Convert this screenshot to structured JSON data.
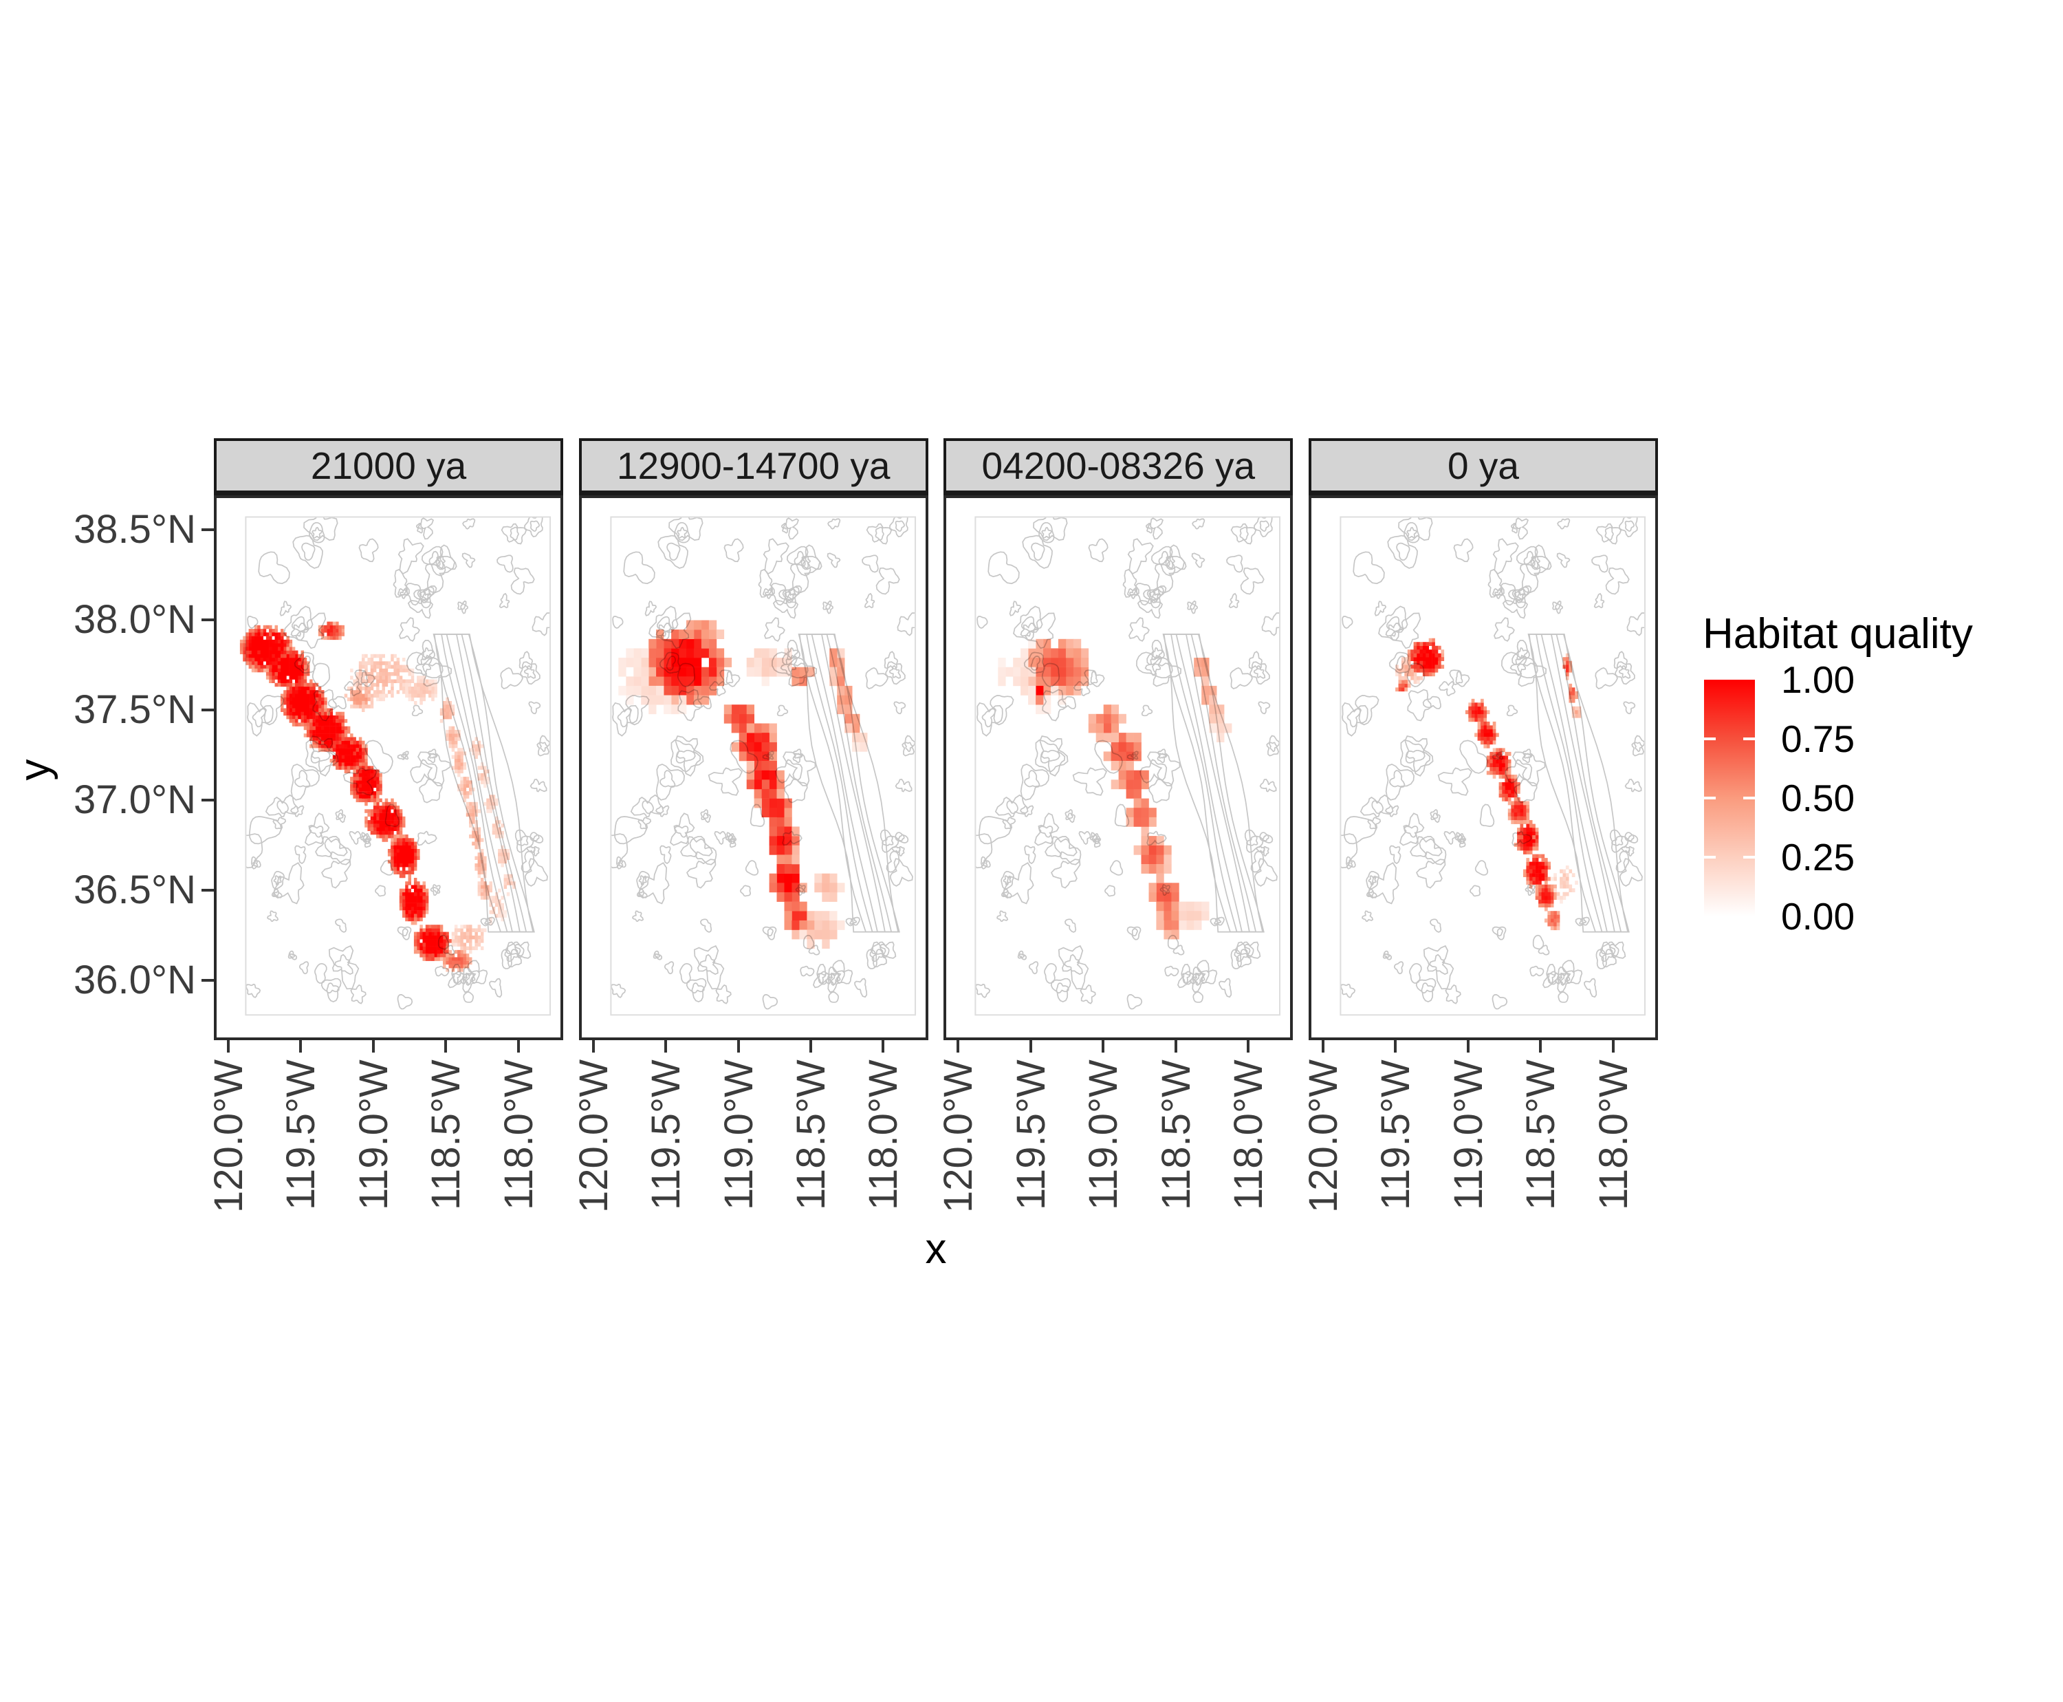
{
  "figure": {
    "background": "#FFFFFF"
  },
  "chart_data": {
    "type": "heatmap",
    "subtype": "faceted-habitat-suitability-maps",
    "facets": [
      "21000 ya",
      "12900-14700 ya",
      "04200-08326 ya",
      "0 ya"
    ],
    "xlabel": "x",
    "ylabel": "y",
    "x_ticks": [
      {
        "label": "120.0°W",
        "lon": 120.0
      },
      {
        "label": "119.5°W",
        "lon": 119.5
      },
      {
        "label": "119.0°W",
        "lon": 119.0
      },
      {
        "label": "118.5°W",
        "lon": 118.5
      },
      {
        "label": "118.0°W",
        "lon": 118.0
      }
    ],
    "y_ticks": [
      {
        "label": "38.5°N",
        "lat": 38.5
      },
      {
        "label": "38.0°N",
        "lat": 38.0
      },
      {
        "label": "37.5°N",
        "lat": 37.5
      },
      {
        "label": "37.0°N",
        "lat": 37.0
      },
      {
        "label": "36.5°N",
        "lat": 36.5
      },
      {
        "label": "36.0°N",
        "lat": 36.0
      }
    ],
    "panel_extent": {
      "west_lon": 120.1,
      "east_lon": 117.69,
      "north_lat": 38.69,
      "south_lat": 35.67
    },
    "map_extent": {
      "west_lon": 119.88,
      "east_lon": 117.78,
      "north_lat": 38.57,
      "south_lat": 35.81
    },
    "legend": {
      "title": "Habitat quality",
      "tick_labels": [
        "1.00",
        "0.75",
        "0.50",
        "0.25",
        "0.00"
      ],
      "tick_values": [
        1.0,
        0.75,
        0.5,
        0.25,
        0.0
      ]
    },
    "colors": {
      "gradient_stops": [
        [
          0,
          "#FFFFFF"
        ],
        [
          0.25,
          "#FDCFBF"
        ],
        [
          0.5,
          "#FA9B7E"
        ],
        [
          0.75,
          "#F6503C"
        ],
        [
          1,
          "#FF0000"
        ]
      ],
      "contour": "#C6C6C6",
      "map_frame": "#DEDEDE",
      "strip_fill": "#D4D4D4",
      "strip_border": "#1A1A1A",
      "panel_border": "#2A2A2A",
      "axis_text": "#3C3C3C",
      "tick_mark": "#333333"
    },
    "panels": [
      {
        "label": "21000 ya",
        "cell_deg": 0.02,
        "patches": [
          [
            119.75,
            37.85,
            0.18,
            0.13,
            1,
            650
          ],
          [
            119.6,
            37.74,
            0.15,
            0.11,
            1,
            520
          ],
          [
            119.49,
            37.55,
            0.16,
            0.13,
            1,
            560
          ],
          [
            119.33,
            37.4,
            0.15,
            0.12,
            1,
            520
          ],
          [
            119.18,
            37.27,
            0.13,
            0.1,
            1,
            430
          ],
          [
            119.06,
            37.1,
            0.11,
            0.11,
            1,
            380
          ],
          [
            118.93,
            36.9,
            0.13,
            0.11,
            1,
            430
          ],
          [
            118.8,
            36.7,
            0.1,
            0.12,
            1,
            380
          ],
          [
            118.73,
            36.45,
            0.1,
            0.12,
            1,
            380
          ],
          [
            118.6,
            36.22,
            0.13,
            0.1,
            0.95,
            420
          ],
          [
            118.44,
            36.12,
            0.1,
            0.06,
            0.6,
            150
          ],
          [
            119.3,
            37.95,
            0.09,
            0.05,
            0.75,
            110
          ],
          [
            118.95,
            37.7,
            0.22,
            0.13,
            0.3,
            300
          ],
          [
            119.1,
            37.58,
            0.1,
            0.07,
            0.42,
            110
          ],
          [
            118.68,
            37.62,
            0.12,
            0.08,
            0.25,
            110
          ],
          [
            118.5,
            37.5,
            0.045,
            0.065,
            0.35,
            60
          ],
          [
            118.46,
            37.36,
            0.045,
            0.065,
            0.35,
            60
          ],
          [
            118.42,
            37.22,
            0.045,
            0.065,
            0.35,
            60
          ],
          [
            118.37,
            37.08,
            0.045,
            0.065,
            0.35,
            60
          ],
          [
            118.33,
            36.94,
            0.045,
            0.065,
            0.35,
            60
          ],
          [
            118.3,
            36.8,
            0.045,
            0.065,
            0.35,
            60
          ],
          [
            118.27,
            36.66,
            0.045,
            0.065,
            0.35,
            60
          ],
          [
            118.24,
            36.52,
            0.045,
            0.065,
            0.35,
            60
          ],
          [
            118.3,
            37.3,
            0.04,
            0.055,
            0.25,
            40
          ],
          [
            118.25,
            37.15,
            0.04,
            0.055,
            0.25,
            40
          ],
          [
            118.2,
            37.0,
            0.04,
            0.055,
            0.25,
            40
          ],
          [
            118.15,
            36.85,
            0.04,
            0.055,
            0.25,
            40
          ],
          [
            118.11,
            36.7,
            0.04,
            0.055,
            0.25,
            40
          ],
          [
            118.08,
            36.55,
            0.04,
            0.055,
            0.25,
            40
          ],
          [
            118.35,
            36.25,
            0.12,
            0.08,
            0.3,
            110
          ],
          [
            118.16,
            36.42,
            0.06,
            0.1,
            0.2,
            50
          ]
        ]
      },
      {
        "label": "12900-14700 ya",
        "cell_deg": 0.052,
        "patches": [
          [
            119.38,
            37.78,
            0.26,
            0.2,
            0.88,
            240
          ],
          [
            119.55,
            37.72,
            0.3,
            0.22,
            0.18,
            120
          ],
          [
            119.25,
            37.97,
            0.1,
            0.04,
            0.45,
            25
          ],
          [
            118.82,
            37.78,
            0.15,
            0.07,
            0.22,
            45
          ],
          [
            118.6,
            37.72,
            0.06,
            0.05,
            0.5,
            16
          ],
          [
            119.02,
            37.48,
            0.1,
            0.08,
            0.7,
            65
          ],
          [
            118.9,
            37.33,
            0.13,
            0.1,
            0.8,
            100
          ],
          [
            118.84,
            37.15,
            0.12,
            0.1,
            0.8,
            95
          ],
          [
            118.78,
            36.98,
            0.1,
            0.09,
            0.75,
            75
          ],
          [
            118.72,
            36.8,
            0.09,
            0.1,
            0.8,
            75
          ],
          [
            118.68,
            36.58,
            0.1,
            0.11,
            0.85,
            95
          ],
          [
            118.62,
            36.38,
            0.08,
            0.08,
            0.7,
            55
          ],
          [
            118.45,
            36.3,
            0.12,
            0.1,
            0.25,
            55
          ],
          [
            118.42,
            36.55,
            0.08,
            0.08,
            0.3,
            38
          ],
          [
            118.36,
            37.82,
            0.045,
            0.06,
            0.45,
            22
          ],
          [
            118.32,
            37.7,
            0.045,
            0.06,
            0.45,
            22
          ],
          [
            118.28,
            37.58,
            0.045,
            0.06,
            0.45,
            22
          ],
          [
            118.24,
            37.47,
            0.045,
            0.06,
            0.45,
            22
          ],
          [
            118.2,
            37.38,
            0.05,
            0.05,
            0.2,
            12
          ]
        ]
      },
      {
        "label": "04200-08326 ya",
        "cell_deg": 0.052,
        "patches": [
          [
            119.33,
            37.77,
            0.2,
            0.17,
            0.62,
            140
          ],
          [
            119.5,
            37.7,
            0.25,
            0.2,
            0.15,
            75
          ],
          [
            119.45,
            37.62,
            0.03,
            0.03,
            1,
            6
          ],
          [
            119.0,
            37.45,
            0.1,
            0.08,
            0.55,
            55
          ],
          [
            118.88,
            37.3,
            0.12,
            0.09,
            0.62,
            75
          ],
          [
            118.82,
            37.12,
            0.11,
            0.09,
            0.6,
            65
          ],
          [
            118.76,
            36.95,
            0.09,
            0.09,
            0.55,
            55
          ],
          [
            118.68,
            36.72,
            0.09,
            0.1,
            0.62,
            65
          ],
          [
            118.6,
            36.5,
            0.1,
            0.1,
            0.6,
            65
          ],
          [
            118.56,
            36.35,
            0.07,
            0.06,
            0.5,
            35
          ],
          [
            118.42,
            36.4,
            0.1,
            0.08,
            0.2,
            38
          ],
          [
            118.34,
            37.76,
            0.04,
            0.06,
            0.42,
            18
          ],
          [
            118.3,
            37.64,
            0.04,
            0.06,
            0.4,
            16
          ],
          [
            118.26,
            37.52,
            0.04,
            0.05,
            0.35,
            13
          ],
          [
            118.22,
            37.42,
            0.04,
            0.05,
            0.2,
            10
          ]
        ]
      },
      {
        "label": "0 ya",
        "cell_deg": 0.021,
        "patches": [
          [
            119.3,
            37.8,
            0.12,
            0.1,
            0.95,
            300
          ],
          [
            119.42,
            37.73,
            0.1,
            0.08,
            0.35,
            80
          ],
          [
            119.46,
            37.64,
            0.04,
            0.03,
            0.7,
            40
          ],
          [
            118.95,
            37.5,
            0.07,
            0.06,
            0.8,
            130
          ],
          [
            118.88,
            37.38,
            0.07,
            0.07,
            0.85,
            150
          ],
          [
            118.8,
            37.22,
            0.08,
            0.08,
            0.85,
            170
          ],
          [
            118.73,
            37.08,
            0.07,
            0.08,
            0.85,
            150
          ],
          [
            118.66,
            36.95,
            0.07,
            0.07,
            0.8,
            130
          ],
          [
            118.6,
            36.8,
            0.08,
            0.09,
            0.9,
            190
          ],
          [
            118.53,
            36.62,
            0.09,
            0.09,
            0.9,
            190
          ],
          [
            118.47,
            36.48,
            0.07,
            0.07,
            0.8,
            130
          ],
          [
            118.42,
            36.35,
            0.05,
            0.05,
            0.6,
            65
          ],
          [
            118.35,
            36.55,
            0.08,
            0.1,
            0.25,
            55
          ],
          [
            118.33,
            37.75,
            0.025,
            0.06,
            0.7,
            38
          ],
          [
            118.29,
            37.6,
            0.025,
            0.06,
            0.6,
            33
          ],
          [
            118.26,
            37.5,
            0.02,
            0.04,
            0.4,
            18
          ]
        ]
      }
    ]
  }
}
